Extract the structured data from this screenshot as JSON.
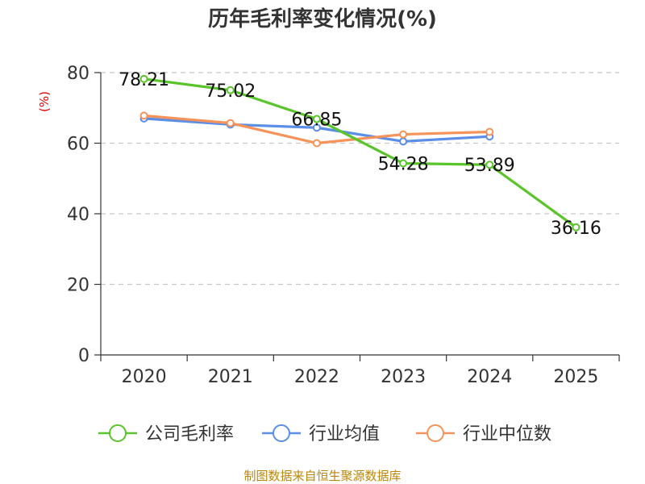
{
  "chart_data": {
    "type": "line",
    "title": "历年毛利率变化情况(%)",
    "ylabel": "(%)",
    "xlabel": "",
    "categories": [
      "2020",
      "2021",
      "2022",
      "2023",
      "2024",
      "2025"
    ],
    "yticks": [
      "0",
      "20",
      "40",
      "60",
      "80"
    ],
    "ylim": [
      0,
      80
    ],
    "grid": true,
    "legend_position": "bottom",
    "series": [
      {
        "name": "公司毛利率",
        "color": "#5ac52a",
        "values": [
          78.21,
          75.02,
          66.85,
          54.28,
          53.89,
          36.16
        ],
        "labels": [
          "78.21",
          "75.02",
          "66.85",
          "54.28",
          "53.89",
          "36.16"
        ]
      },
      {
        "name": "行业均值",
        "color": "#5b8ee6",
        "values": [
          67.0,
          65.3,
          64.4,
          60.5,
          61.9,
          null
        ]
      },
      {
        "name": "行业中位数",
        "color": "#f5935a",
        "values": [
          67.8,
          65.7,
          60.0,
          62.5,
          63.2,
          null
        ]
      }
    ],
    "source": "制图数据来自恒生聚源数据库"
  }
}
